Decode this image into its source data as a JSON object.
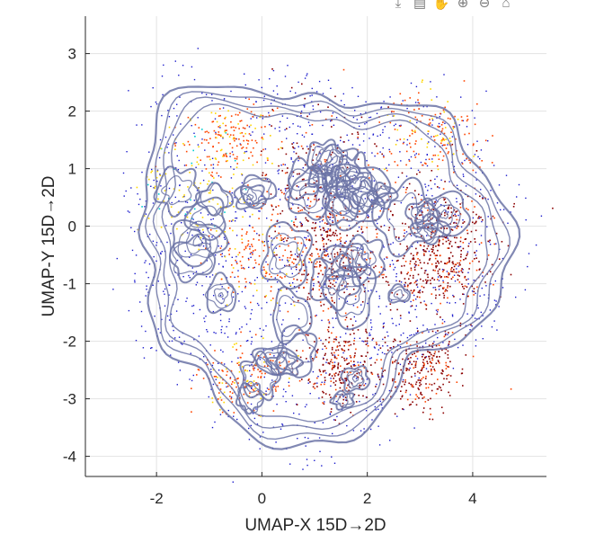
{
  "toolbar": {
    "buttons": [
      {
        "name": "export-icon",
        "glyph": "⤓"
      },
      {
        "name": "brush-icon",
        "glyph": "▤"
      },
      {
        "name": "pan-icon",
        "glyph": "✋"
      },
      {
        "name": "zoom-in-icon",
        "glyph": "⊕"
      },
      {
        "name": "zoom-out-icon",
        "glyph": "⊖"
      },
      {
        "name": "home-icon",
        "glyph": "⌂"
      }
    ]
  },
  "chart_data": {
    "type": "scatter",
    "title": "",
    "xlabel": "UMAP-X  15D→2D",
    "ylabel": "UMAP-Y  15D→2D",
    "xlim": [
      -3.35,
      5.4
    ],
    "ylim": [
      -4.35,
      3.65
    ],
    "xticks": [
      -2,
      0,
      2,
      4
    ],
    "yticks": [
      -4,
      -3,
      -2,
      -1,
      0,
      1,
      2,
      3
    ],
    "grid": true,
    "point_color": "#1a1acc",
    "contour_color": "#6b73a6",
    "density_colors": [
      "#8b0000",
      "#ff4500",
      "#ffd700",
      "#00ced1"
    ],
    "density_regions": [
      {
        "x": 1.0,
        "y": 0.6,
        "sx": 0.55,
        "sy": 0.75,
        "level": "high"
      },
      {
        "x": 1.3,
        "y": -0.6,
        "sx": 0.4,
        "sy": 0.5,
        "level": "high"
      },
      {
        "x": 3.4,
        "y": 0.0,
        "sx": 0.55,
        "sy": 0.4,
        "level": "high"
      },
      {
        "x": 3.3,
        "y": -0.8,
        "sx": 0.5,
        "sy": 0.35,
        "level": "high"
      },
      {
        "x": 3.2,
        "y": 1.6,
        "sx": 0.5,
        "sy": 0.35,
        "level": "mid"
      },
      {
        "x": 1.5,
        "y": -2.4,
        "sx": 0.35,
        "sy": 0.35,
        "level": "high"
      },
      {
        "x": 3.0,
        "y": -2.5,
        "sx": 0.4,
        "sy": 0.35,
        "level": "high"
      },
      {
        "x": -0.3,
        "y": -2.6,
        "sx": 0.45,
        "sy": 0.3,
        "level": "mid"
      },
      {
        "x": -1.2,
        "y": 0.6,
        "sx": 0.6,
        "sy": 0.6,
        "level": "low"
      },
      {
        "x": 0.0,
        "y": -0.6,
        "sx": 0.5,
        "sy": 0.4,
        "level": "mid"
      },
      {
        "x": -0.7,
        "y": 1.5,
        "sx": 0.4,
        "sy": 0.3,
        "level": "mid"
      }
    ]
  }
}
